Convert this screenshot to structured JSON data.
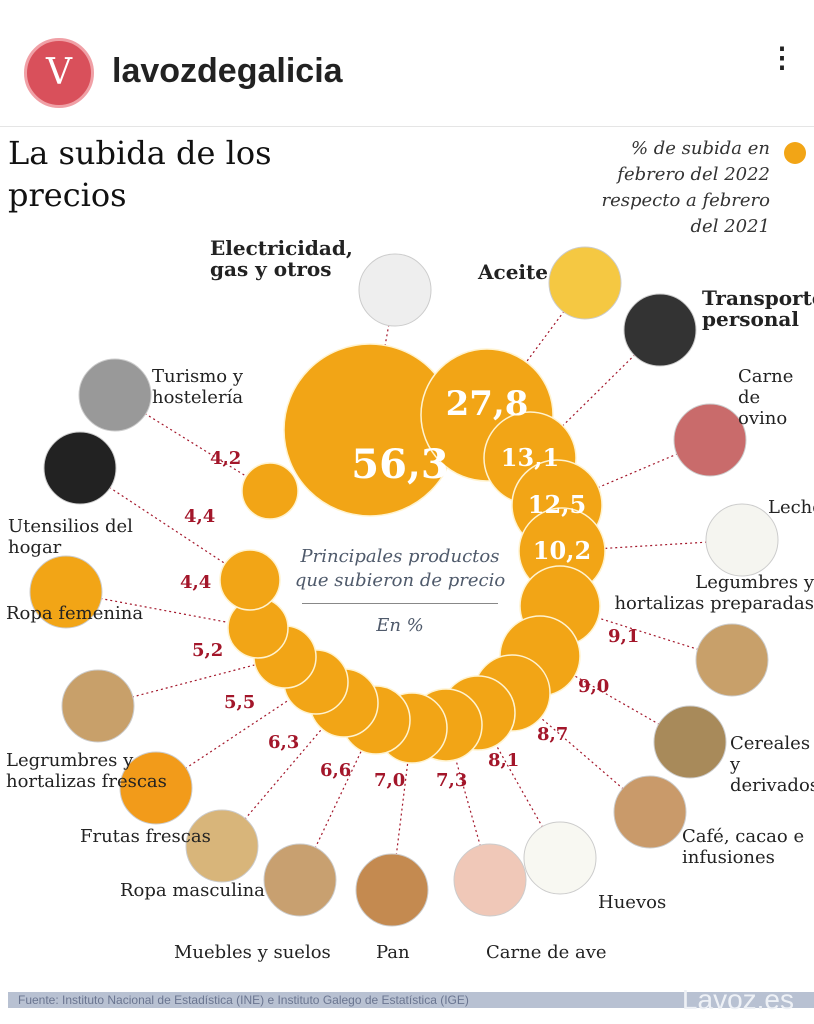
{
  "header": {
    "account": "lavozdegalicia",
    "avatar_glyph": "V",
    "more": "⋮"
  },
  "chart_data": {
    "type": "bubble",
    "title": "La subida de los precios",
    "legend": "% de subida en febrero del 2022 respecto a febrero del 2021",
    "subtitle": "Principales productos que subieron de precio",
    "unit": "En %",
    "accent": "#f2a516",
    "value_color": "#a3162a",
    "items": [
      {
        "label": "Electricidad, gas y otros",
        "value": "56,3",
        "v": 56.3
      },
      {
        "label": "Aceite",
        "value": "27,8",
        "v": 27.8
      },
      {
        "label": "Transporte personal",
        "value": "13,1",
        "v": 13.1
      },
      {
        "label": "Carne de ovino",
        "value": "12,5",
        "v": 12.5
      },
      {
        "label": "Leche",
        "value": "10,2",
        "v": 10.2
      },
      {
        "label": "Legumbres y hortalizas preparadas",
        "value": "9,1",
        "v": 9.1
      },
      {
        "label": "Cereales y derivados",
        "value": "9,0",
        "v": 9.0
      },
      {
        "label": "Café, cacao e infusiones",
        "value": "8,7",
        "v": 8.7
      },
      {
        "label": "Huevos",
        "value": "8,1",
        "v": 8.1
      },
      {
        "label": "Carne de ave",
        "value": "7,3",
        "v": 7.3
      },
      {
        "label": "Pan",
        "value": "7,0",
        "v": 7.0
      },
      {
        "label": "Muebles y suelos",
        "value": "6,6",
        "v": 6.6
      },
      {
        "label": "Ropa masculina",
        "value": "6,3",
        "v": 6.3
      },
      {
        "label": "Frutas frescas",
        "value": "5,5",
        "v": 5.5
      },
      {
        "label": "Legrumbres y hortalizas frescas",
        "value": "5,2",
        "v": 5.2
      },
      {
        "label": "Ropa femenina",
        "value": "4,4",
        "v": 4.4
      },
      {
        "label": "Utensilios del hogar",
        "value": "4,4",
        "v": 4.4
      },
      {
        "label": "Turismo y hostelería",
        "value": "4,2",
        "v": 4.2
      }
    ]
  },
  "footer": {
    "source": "Fuente: Instituto Nacional de Estadística (INE) e Instituto Galego de Estatística (IGE)",
    "brand": "Lavoz.es"
  }
}
